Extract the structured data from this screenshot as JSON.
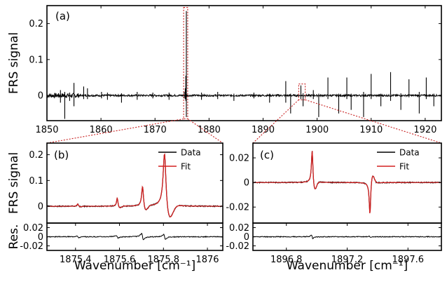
{
  "colors": {
    "data": "#000000",
    "fit": "#d42020",
    "zoom_box": "#c82020"
  },
  "chart_data": [
    {
      "id": "a",
      "type": "line",
      "panel_label": "(a)",
      "ylabel": "FRS signal",
      "xlabel": "",
      "xlim": [
        1850,
        1923
      ],
      "ylim": [
        -0.07,
        0.25
      ],
      "xticks": [
        1850,
        1860,
        1870,
        1880,
        1890,
        1900,
        1910,
        1920
      ],
      "yticks": [
        0,
        0.1,
        0.2
      ],
      "ytick_labels": [
        "0",
        "0.1",
        "0.2"
      ],
      "lines": [
        {
          "x": 1852.5,
          "up": 0.015,
          "down": 0.02
        },
        {
          "x": 1853.3,
          "up": 0.01,
          "down": 0.065
        },
        {
          "x": 1854.2,
          "up": 0.008,
          "down": 0.015
        },
        {
          "x": 1855.0,
          "up": 0.035,
          "down": 0.03
        },
        {
          "x": 1856.8,
          "up": 0.025,
          "down": 0.01
        },
        {
          "x": 1857.5,
          "up": 0.02,
          "down": 0.01
        },
        {
          "x": 1860.1,
          "up": 0.01,
          "down": 0.008
        },
        {
          "x": 1861.2,
          "up": 0.008,
          "down": 0.012
        },
        {
          "x": 1863.8,
          "up": 0.006,
          "down": 0.02
        },
        {
          "x": 1866.7,
          "up": 0.01,
          "down": 0.012
        },
        {
          "x": 1869.6,
          "up": 0.008,
          "down": 0.008
        },
        {
          "x": 1872.6,
          "up": 0.008,
          "down": 0.012
        },
        {
          "x": 1875.4,
          "up": 0.01,
          "down": 0.008
        },
        {
          "x": 1875.6,
          "up": 0.02,
          "down": 0.01
        },
        {
          "x": 1875.7,
          "up": 0.055,
          "down": 0.015
        },
        {
          "x": 1875.8,
          "up": 0.235,
          "down": 0.06
        },
        {
          "x": 1878.6,
          "up": 0.008,
          "down": 0.012
        },
        {
          "x": 1881.6,
          "up": 0.01,
          "down": 0.01
        },
        {
          "x": 1884.6,
          "up": 0.005,
          "down": 0.015
        },
        {
          "x": 1888.3,
          "up": 0.008,
          "down": 0.008
        },
        {
          "x": 1891.2,
          "up": 0.005,
          "down": 0.02
        },
        {
          "x": 1894.2,
          "up": 0.04,
          "down": 0.02
        },
        {
          "x": 1895.1,
          "up": 0.005,
          "down": 0.05
        },
        {
          "x": 1897.0,
          "up": 0.028,
          "down": 0.01
        },
        {
          "x": 1897.4,
          "up": 0.006,
          "down": 0.03
        },
        {
          "x": 1899.3,
          "up": 0.015,
          "down": 0.01
        },
        {
          "x": 1900.3,
          "up": 0.005,
          "down": 0.06
        },
        {
          "x": 1902.0,
          "up": 0.05,
          "down": 0.01
        },
        {
          "x": 1904.0,
          "up": 0.005,
          "down": 0.05
        },
        {
          "x": 1905.5,
          "up": 0.05,
          "down": 0.01
        },
        {
          "x": 1906.3,
          "up": 0.005,
          "down": 0.04
        },
        {
          "x": 1908.6,
          "up": 0.01,
          "down": 0.06
        },
        {
          "x": 1910.0,
          "up": 0.06,
          "down": 0.01
        },
        {
          "x": 1911.8,
          "up": 0.005,
          "down": 0.03
        },
        {
          "x": 1913.6,
          "up": 0.065,
          "down": 0.015
        },
        {
          "x": 1915.5,
          "up": 0.006,
          "down": 0.04
        },
        {
          "x": 1917.0,
          "up": 0.045,
          "down": 0.005
        },
        {
          "x": 1918.9,
          "up": 0.01,
          "down": 0.05
        },
        {
          "x": 1920.2,
          "up": 0.05,
          "down": 0.01
        },
        {
          "x": 1921.6,
          "up": 0.005,
          "down": 0.03
        }
      ],
      "zoom_ranges": [
        [
          1875.3,
          1876.05
        ],
        [
          1896.6,
          1897.8
        ]
      ],
      "zoom_ylim": [
        [
          -0.065,
          0.245
        ],
        [
          -0.012,
          0.032
        ]
      ]
    },
    {
      "id": "b",
      "type": "line",
      "panel_label": "(b)",
      "ylabel": "FRS signal",
      "xlabel": "Wavenumber [cm⁻¹]",
      "xlim": [
        1875.27,
        1876.07
      ],
      "ylim": [
        -0.065,
        0.245
      ],
      "xticks": [
        1875.4,
        1875.6,
        1875.8,
        1876
      ],
      "xtick_labels": [
        "1875.4",
        "1875.6",
        "1875.8",
        "1876"
      ],
      "yticks": [
        0,
        0.1,
        0.2
      ],
      "ytick_labels": [
        "0",
        "0.1",
        "0.2"
      ],
      "legend": [
        "Data",
        "Fit"
      ],
      "legend_position": "top-right",
      "lines": [
        {
          "x": 1875.41,
          "amp": 0.01,
          "w": 0.004
        },
        {
          "x": 1875.59,
          "amp": 0.035,
          "w": 0.004
        },
        {
          "x": 1875.705,
          "amp": 0.085,
          "w": 0.005
        },
        {
          "x": 1875.805,
          "amp": 0.23,
          "w": 0.008
        }
      ],
      "residual": {
        "ylabel": "Res.",
        "ylim": [
          -0.03,
          0.03
        ],
        "yticks": [
          -0.02,
          0,
          0.02
        ],
        "ytick_labels": [
          "-0.02",
          "0",
          "0.02"
        ],
        "features": [
          {
            "x": 1875.41,
            "amp": 0.004
          },
          {
            "x": 1875.59,
            "amp": 0.006
          },
          {
            "x": 1875.705,
            "amp": 0.014
          },
          {
            "x": 1875.805,
            "amp": 0.01
          }
        ]
      }
    },
    {
      "id": "c",
      "type": "line",
      "panel_label": "(c)",
      "ylabel": "",
      "xlabel": "Wavenumber [cm⁻¹]",
      "xlim": [
        1896.58,
        1897.82
      ],
      "ylim": [
        -0.033,
        0.032
      ],
      "xticks": [
        1896.8,
        1897.2,
        1897.6
      ],
      "xtick_labels": [
        "1896.8",
        "1897.2",
        "1897.6"
      ],
      "yticks": [
        -0.02,
        0,
        0.02
      ],
      "ytick_labels": [
        "-0.02",
        "0",
        "0.02"
      ],
      "legend": [
        "Data",
        "Fit"
      ],
      "legend_position": "top-right",
      "lines": [
        {
          "x": 1896.97,
          "amp": 0.029,
          "w": 0.006
        },
        {
          "x": 1897.35,
          "amp": -0.029,
          "w": 0.006
        }
      ],
      "residual": {
        "ylabel": "",
        "ylim": [
          -0.03,
          0.03
        ],
        "yticks": [
          -0.02,
          0,
          0.02
        ],
        "ytick_labels": [
          "-0.02",
          "0",
          "0.02"
        ],
        "features": [
          {
            "x": 1896.97,
            "amp": 0.008
          },
          {
            "x": 1897.35,
            "amp": 0.002
          }
        ]
      }
    }
  ]
}
